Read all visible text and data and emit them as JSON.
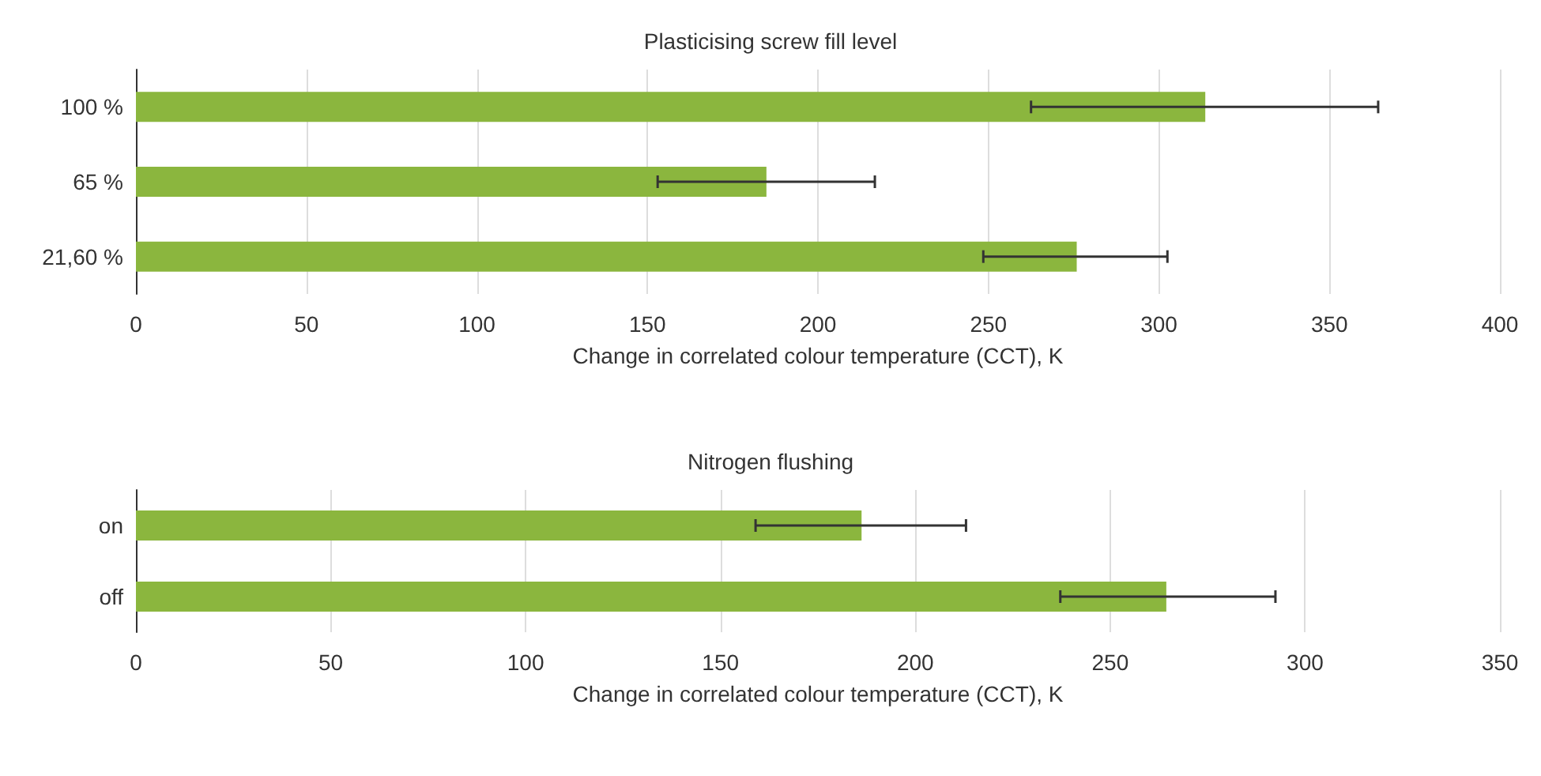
{
  "chart_data": [
    {
      "type": "bar",
      "orientation": "horizontal",
      "title": "Plasticising screw fill level",
      "xlabel": "Change in correlated colour temperature (CCT), K",
      "categories": [
        "100 %",
        "65 %",
        "21,60 %"
      ],
      "series": [
        {
          "color": "#8bb63e",
          "values": [
            313.6,
            184.9,
            275.9
          ],
          "errors": [
            [
              262.5,
              364.3
            ],
            [
              153,
              216.7
            ],
            [
              248.5,
              302.5
            ]
          ]
        }
      ],
      "xlim": [
        0,
        400
      ],
      "xticks": [
        0,
        50,
        100,
        150,
        200,
        250,
        300,
        350,
        400
      ],
      "grid": "x"
    },
    {
      "type": "bar",
      "orientation": "horizontal",
      "title": "Nitrogen flushing",
      "xlabel": "Change in correlated colour temperature (CCT), K",
      "categories": [
        "on",
        "off"
      ],
      "series": [
        {
          "color": "#8bb63e",
          "values": [
            186.2,
            264.4
          ],
          "errors": [
            [
              159,
              213
            ],
            [
              237.2,
              292.4
            ]
          ]
        }
      ],
      "xlim": [
        0,
        350
      ],
      "xticks": [
        0,
        50,
        100,
        150,
        200,
        250,
        300,
        350
      ],
      "grid": "x"
    }
  ]
}
